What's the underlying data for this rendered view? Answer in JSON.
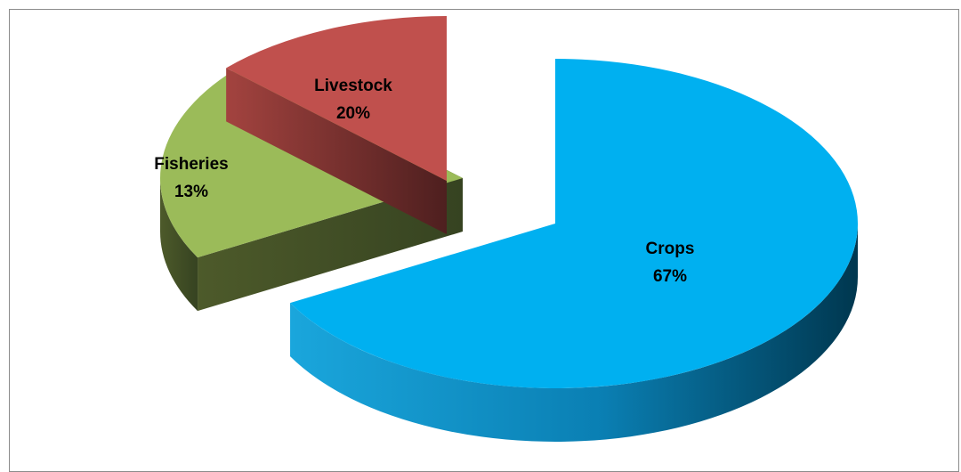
{
  "chart_data": {
    "type": "pie",
    "style": "3d-exploded",
    "slices": [
      {
        "name": "Crops",
        "value": 67,
        "label": "67%",
        "color": "#00B0F0"
      },
      {
        "name": "Livestock",
        "value": 20,
        "label": "20%",
        "color": "#9BBB59"
      },
      {
        "name": "Fisheries",
        "value": 13,
        "label": "13%",
        "color": "#C0504D"
      }
    ],
    "legend": "none"
  }
}
